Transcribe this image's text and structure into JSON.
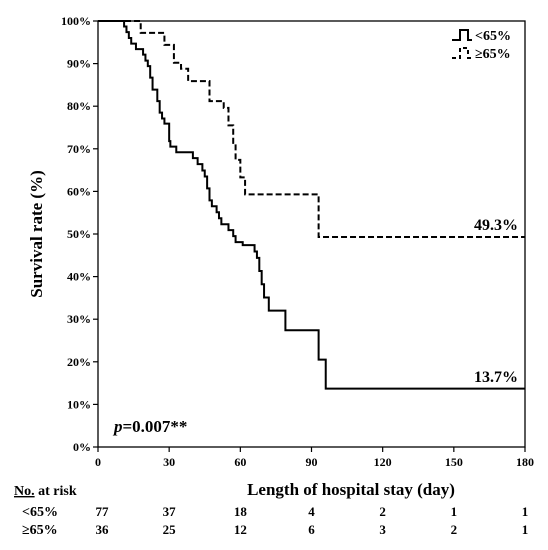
{
  "chart_data": {
    "type": "line",
    "subtype": "kaplan-meier",
    "xlabel": "Length of hospital stay (day)",
    "ylabel": "Survival rate (%)",
    "xlim": [
      0,
      180
    ],
    "ylim": [
      0,
      100
    ],
    "x_ticks": [
      "0",
      "30",
      "60",
      "90",
      "120",
      "150",
      "180"
    ],
    "y_ticks": [
      "0%",
      "10%",
      "20%",
      "30%",
      "40%",
      "50%",
      "60%",
      "70%",
      "80%",
      "90%",
      "100%"
    ],
    "grid": false,
    "legend_position": "top-right",
    "series": [
      {
        "name": "<65%",
        "line_style": "solid",
        "end_label": "13.7%",
        "steps": [
          [
            0,
            100
          ],
          [
            11,
            98.7
          ],
          [
            12,
            97.4
          ],
          [
            13,
            96
          ],
          [
            14,
            94.7
          ],
          [
            16,
            93.4
          ],
          [
            19,
            92.1
          ],
          [
            20,
            90.7
          ],
          [
            21,
            89.4
          ],
          [
            22,
            86.7
          ],
          [
            23,
            83.9
          ],
          [
            25,
            81.2
          ],
          [
            26,
            78.5
          ],
          [
            27,
            77.1
          ],
          [
            28,
            75.9
          ],
          [
            30,
            71.8
          ],
          [
            30.5,
            70.5
          ],
          [
            33,
            69.2
          ],
          [
            40,
            67.8
          ],
          [
            42,
            66.4
          ],
          [
            44,
            64.9
          ],
          [
            45,
            63.5
          ],
          [
            46,
            60.7
          ],
          [
            47,
            57.9
          ],
          [
            48,
            56.5
          ],
          [
            50,
            55.1
          ],
          [
            51,
            53.7
          ],
          [
            52,
            52.3
          ],
          [
            55,
            50.9
          ],
          [
            57,
            49.5
          ],
          [
            58,
            48.1
          ],
          [
            61,
            47.4
          ],
          [
            66,
            45.9
          ],
          [
            67,
            44.4
          ],
          [
            68,
            41.3
          ],
          [
            69,
            38.2
          ],
          [
            70,
            35.1
          ],
          [
            72,
            32.0
          ],
          [
            79,
            27.4
          ],
          [
            93,
            20.5
          ],
          [
            96,
            13.7
          ],
          [
            180,
            13.7
          ]
        ]
      },
      {
        "name": "≥65%",
        "line_style": "dashed",
        "end_label": "49.3%",
        "steps": [
          [
            0,
            100
          ],
          [
            18,
            97.2
          ],
          [
            28,
            94.4
          ],
          [
            32,
            90.2
          ],
          [
            35,
            88.8
          ],
          [
            38,
            85.9
          ],
          [
            47,
            81.2
          ],
          [
            53,
            79.6
          ],
          [
            55,
            75.5
          ],
          [
            57,
            71.4
          ],
          [
            58,
            67.4
          ],
          [
            60,
            63.3
          ],
          [
            62,
            59.3
          ],
          [
            93,
            49.3
          ],
          [
            180,
            49.3
          ]
        ]
      }
    ],
    "annotation": {
      "p_label": "p",
      "p_value": "=0.007**"
    },
    "at_risk": {
      "header": "No.",
      "header_suffix": " at risk",
      "times": [
        0,
        30,
        60,
        90,
        120,
        150,
        180
      ],
      "rows": [
        {
          "label": "<65%",
          "values": [
            "77",
            "37",
            "18",
            "4",
            "2",
            "1",
            "1"
          ]
        },
        {
          "label": "≥65%",
          "values": [
            "36",
            "25",
            "12",
            "6",
            "3",
            "2",
            "1"
          ]
        }
      ]
    }
  }
}
